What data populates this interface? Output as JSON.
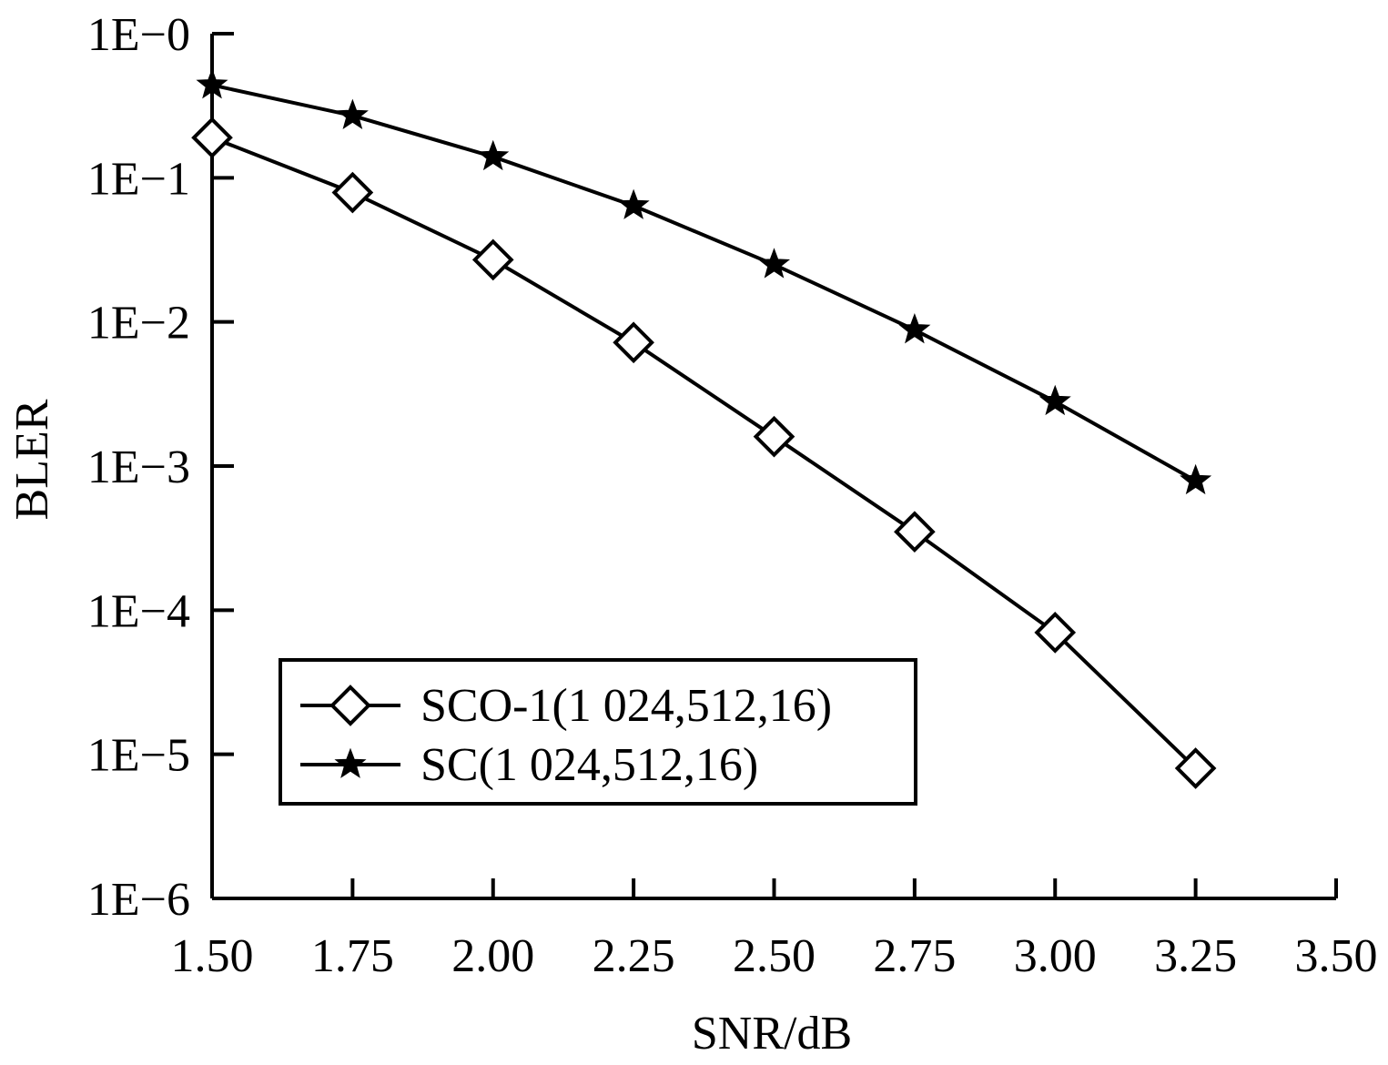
{
  "chart_data": {
    "type": "line",
    "xlabel": "SNR/dB",
    "ylabel": "BLER",
    "xlim": [
      1.5,
      3.5
    ],
    "ylim": [
      1e-06,
      1
    ],
    "yscale": "log",
    "grid": false,
    "legend_position": "bottom-left",
    "x_ticks": [
      "1.50",
      "1.75",
      "2.00",
      "2.25",
      "2.50",
      "2.75",
      "3.00",
      "3.25",
      "3.50"
    ],
    "y_ticks": [
      {
        "value": 1,
        "label": "1E−0"
      },
      {
        "value": 0.1,
        "label": "1E−1"
      },
      {
        "value": 0.01,
        "label": "1E−2"
      },
      {
        "value": 0.001,
        "label": "1E−3"
      },
      {
        "value": 0.0001,
        "label": "1E−4"
      },
      {
        "value": 1e-05,
        "label": "1E−5"
      },
      {
        "value": 1e-06,
        "label": "1E−6"
      }
    ],
    "x": [
      1.5,
      1.75,
      2.0,
      2.25,
      2.5,
      2.75,
      3.0,
      3.25
    ],
    "series": [
      {
        "name": "SCO-1(1 024,512,16)",
        "marker": "diamond",
        "values": [
          0.19,
          0.079,
          0.027,
          0.0072,
          0.0016,
          0.00035,
          7e-05,
          8e-06
        ]
      },
      {
        "name": "SC(1 024,512,16)",
        "marker": "star",
        "values": [
          0.44,
          0.27,
          0.14,
          0.064,
          0.025,
          0.0088,
          0.0028,
          0.00079
        ]
      }
    ]
  }
}
